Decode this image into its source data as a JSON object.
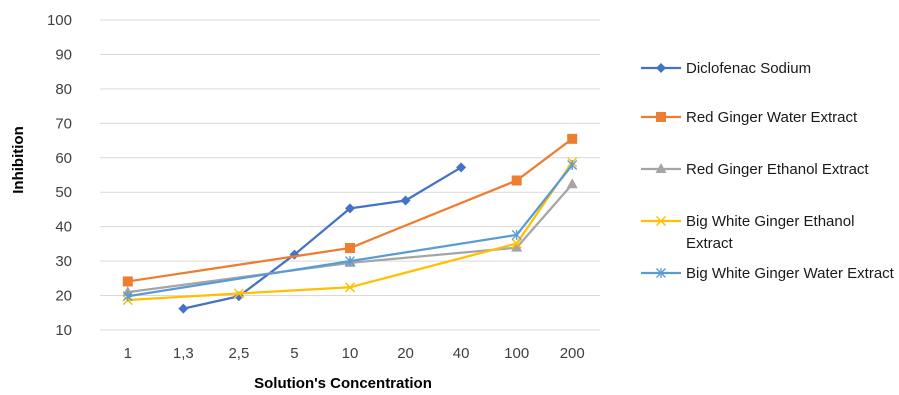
{
  "chart_data": {
    "type": "line",
    "xlabel": "Solution's Concentration",
    "ylabel": "Inhibition",
    "categories": [
      "1",
      "1,3",
      "2,5",
      "5",
      "10",
      "20",
      "40",
      "100",
      "200"
    ],
    "ylim": [
      10,
      100
    ],
    "yticks": [
      "10",
      "20",
      "30",
      "40",
      "50",
      "60",
      "70",
      "80",
      "90",
      "100"
    ],
    "grid": true,
    "legend_position": "right",
    "series": [
      {
        "name": "Diclofenac Sodium",
        "color": "#4472c4",
        "marker": "diamond",
        "values": [
          null,
          16.2,
          19.8,
          31.9,
          45.3,
          47.6,
          57.2,
          null,
          null
        ]
      },
      {
        "name": "Red Ginger Water Extract",
        "color": "#ed7d31",
        "marker": "square",
        "values": [
          24.1,
          null,
          null,
          null,
          33.8,
          null,
          null,
          53.4,
          65.5
        ]
      },
      {
        "name": "Red Ginger Ethanol Extract",
        "color": "#a5a5a5",
        "marker": "triangle",
        "values": [
          21.0,
          null,
          null,
          null,
          29.5,
          null,
          null,
          33.9,
          52.3
        ]
      },
      {
        "name": "Big White Ginger Ethanol Extract",
        "color": "#ffc000",
        "marker": "x",
        "values": [
          18.7,
          null,
          20.6,
          null,
          22.4,
          null,
          null,
          35.1,
          58.7
        ]
      },
      {
        "name": "Big White Ginger Water Extract",
        "color": "#5b9bd5",
        "marker": "star",
        "values": [
          19.8,
          null,
          null,
          null,
          30.0,
          null,
          null,
          37.6,
          57.9
        ]
      }
    ]
  }
}
